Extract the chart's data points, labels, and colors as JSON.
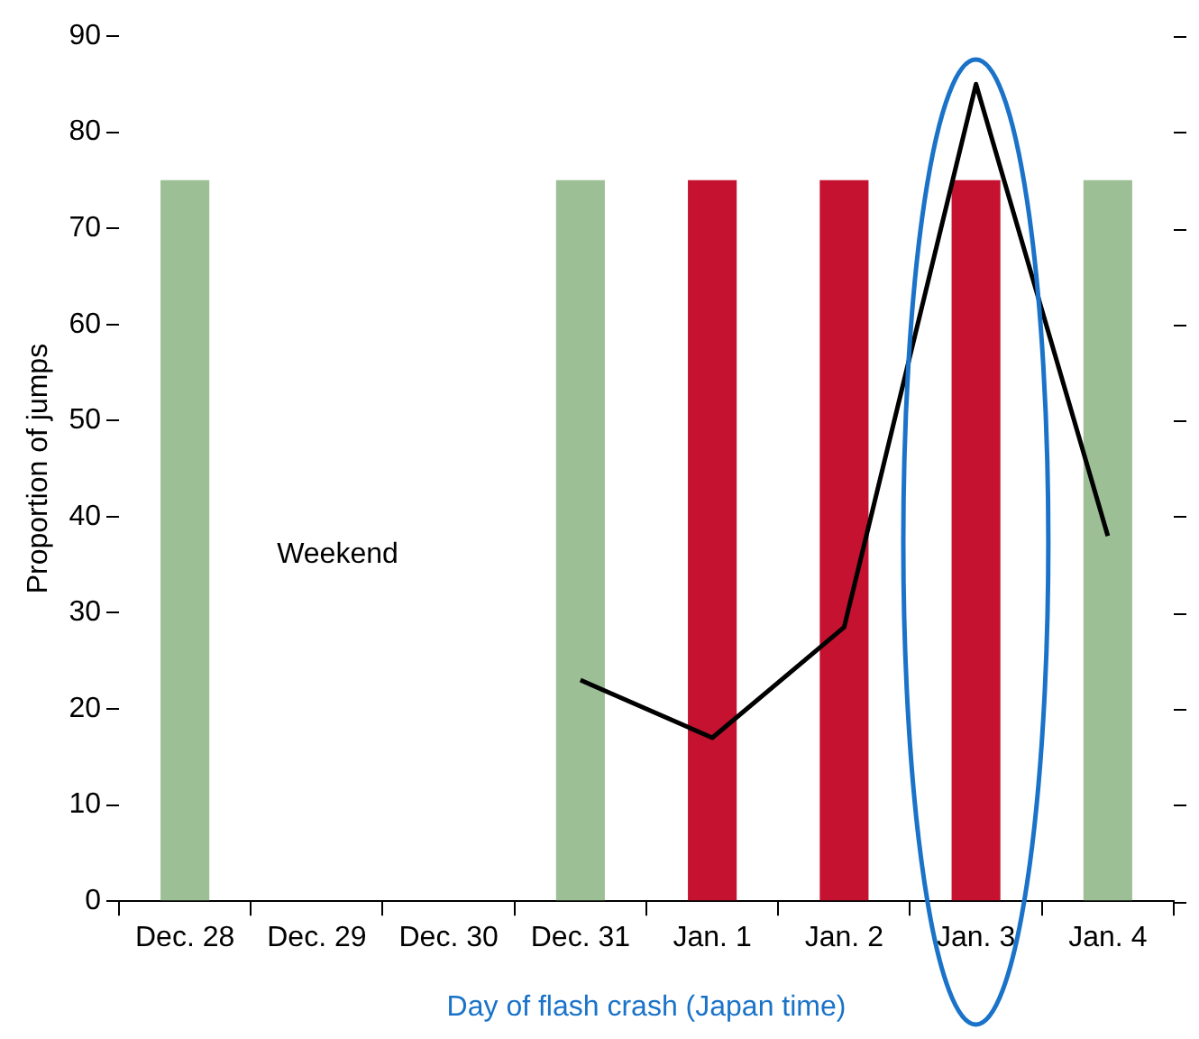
{
  "chart_data": {
    "type": "bar",
    "xlabel": "Day of flash crash (Japan time)",
    "ylabel": "Proportion of jumps",
    "categories": [
      "Dec. 28",
      "Dec. 29",
      "Dec. 30",
      "Dec. 31",
      "Jan. 1",
      "Jan. 2",
      "Jan. 3",
      "Jan. 4"
    ],
    "series": [
      {
        "colors": [
          "#9dbf96",
          null,
          null,
          "#9dbf96",
          "#c41230",
          "#c41230",
          "#c41230",
          "#9dbf96"
        ],
        "values": [
          75,
          null,
          null,
          75,
          75,
          75,
          75,
          75
        ]
      },
      {
        "type": "line",
        "color": "#000000",
        "values": [
          null,
          null,
          null,
          23,
          17,
          28.5,
          85,
          38
        ]
      }
    ],
    "ylim": [
      0,
      90
    ],
    "yticks": [
      0,
      10,
      20,
      30,
      40,
      50,
      60,
      70,
      80,
      90
    ],
    "annotations": [
      "Weekend"
    ],
    "grid": false,
    "legend": false,
    "marker": "none",
    "line_style": "solid"
  }
}
